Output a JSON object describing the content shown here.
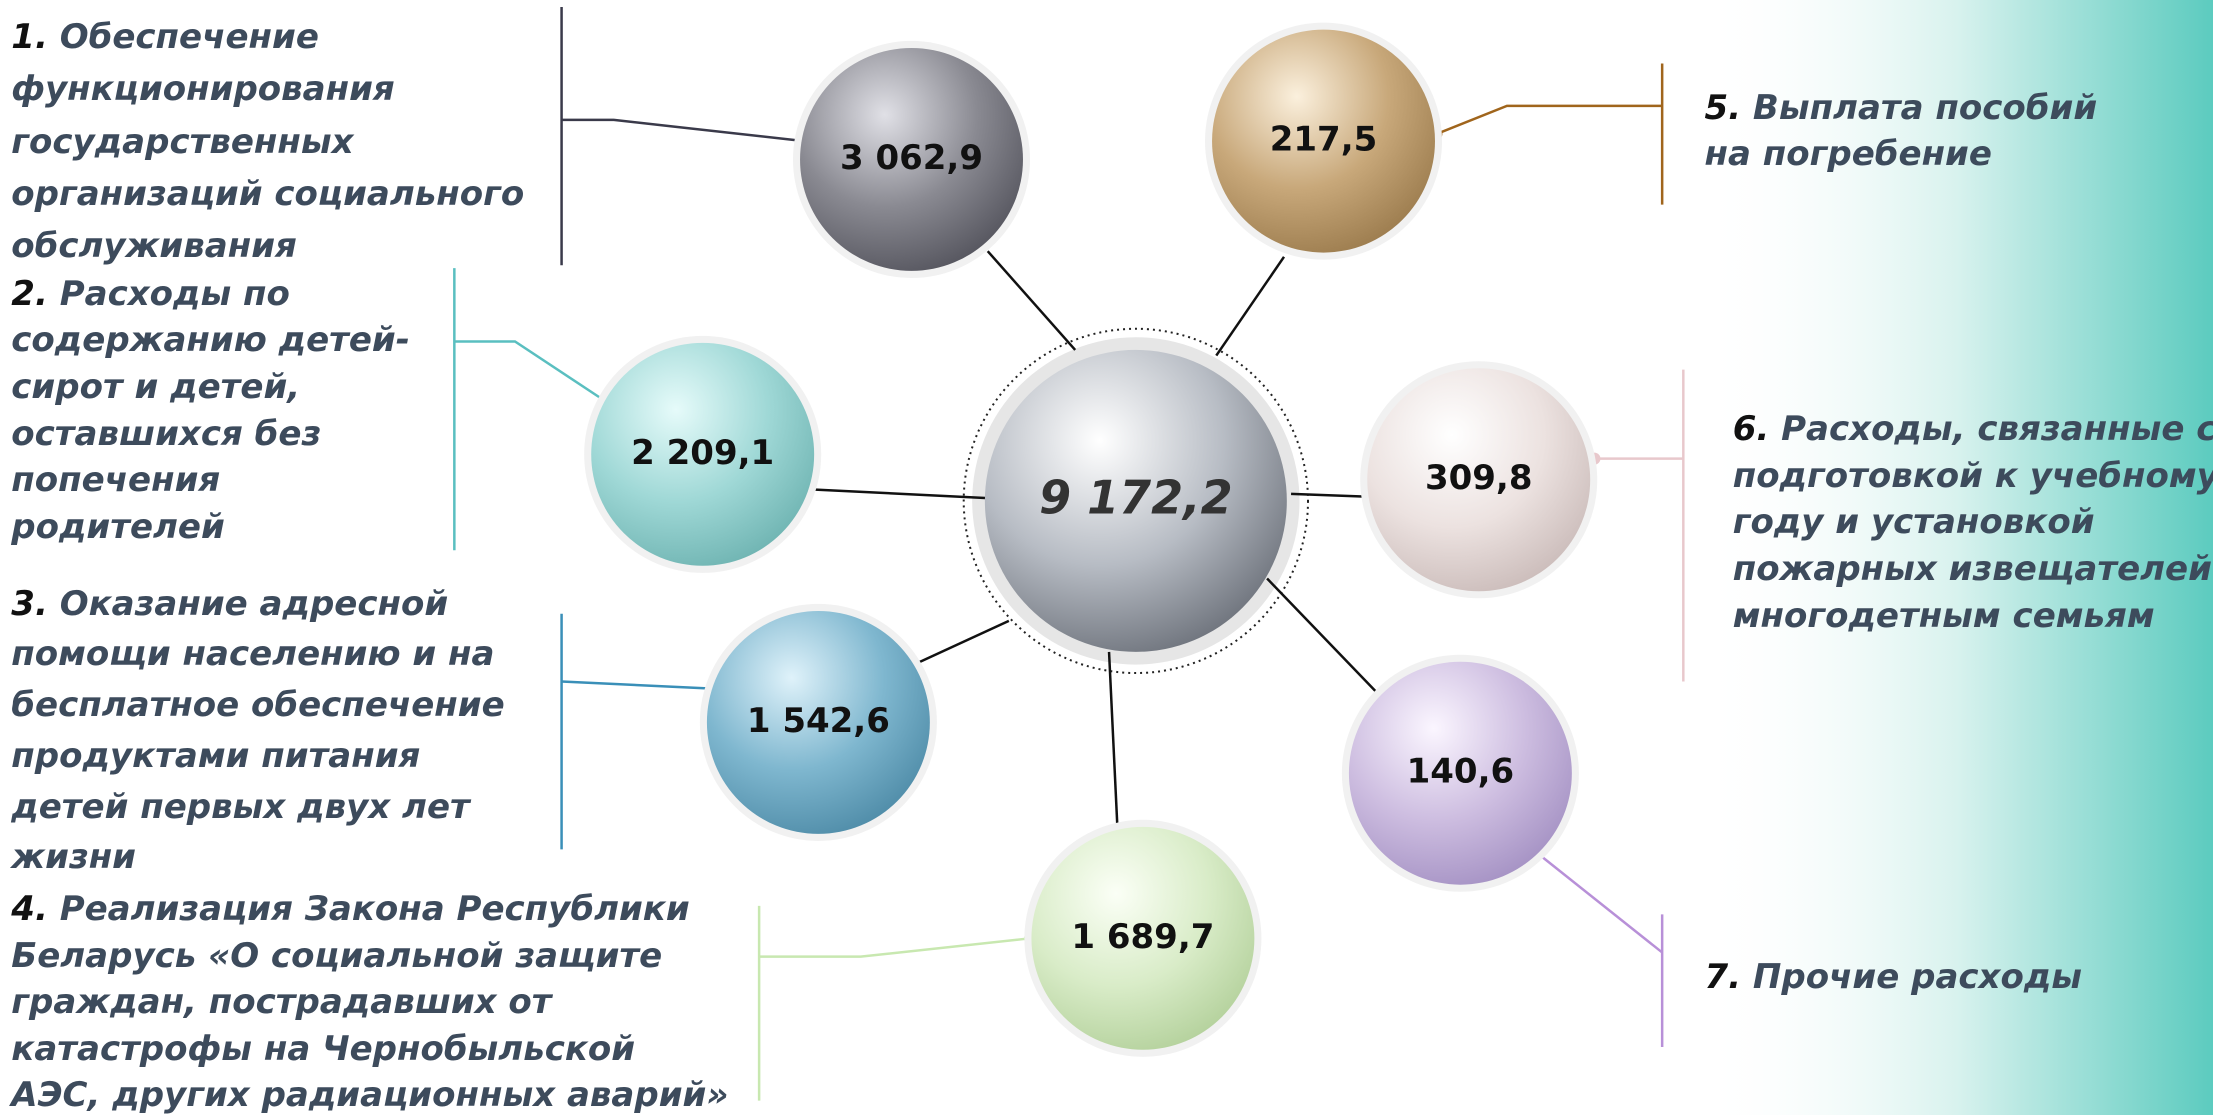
{
  "center": {
    "value": "9 172,2"
  },
  "items": [
    {
      "number": "1.",
      "lines": [
        "Обеспечение",
        "функционирования",
        "государственных",
        "организаций социального",
        "обслуживания"
      ],
      "value": "3 062,9"
    },
    {
      "number": "2.",
      "lines": [
        "Расходы по",
        "содержанию детей-",
        "сирот и детей,",
        "оставшихся без",
        "попечения",
        "родителей"
      ],
      "value": "2 209,1"
    },
    {
      "number": "3.",
      "lines": [
        "Оказание адресной",
        "помощи населению и на",
        "бесплатное обеспечение",
        "продуктами питания",
        "детей первых двух лет",
        "жизни"
      ],
      "value": "1 542,6"
    },
    {
      "number": "4.",
      "lines": [
        "Реализация Закона Республики",
        "Беларусь «О социальной защите",
        "граждан, пострадавших от",
        "катастрофы на Чернобыльской",
        "АЭС, других радиационных аварий»"
      ],
      "value": "1 689,7"
    },
    {
      "number": "5.",
      "lines": [
        "Выплата пособий",
        "на погребение"
      ],
      "value": "217,5"
    },
    {
      "number": "6.",
      "lines": [
        "Расходы, связанные с",
        "подготовкой к учебному",
        "году и установкой",
        "пожарных извещателей",
        "многодетным семьям"
      ],
      "value": "309,8"
    },
    {
      "number": "7.",
      "lines": [
        "Прочие расходы"
      ],
      "value": "140,6"
    }
  ]
}
